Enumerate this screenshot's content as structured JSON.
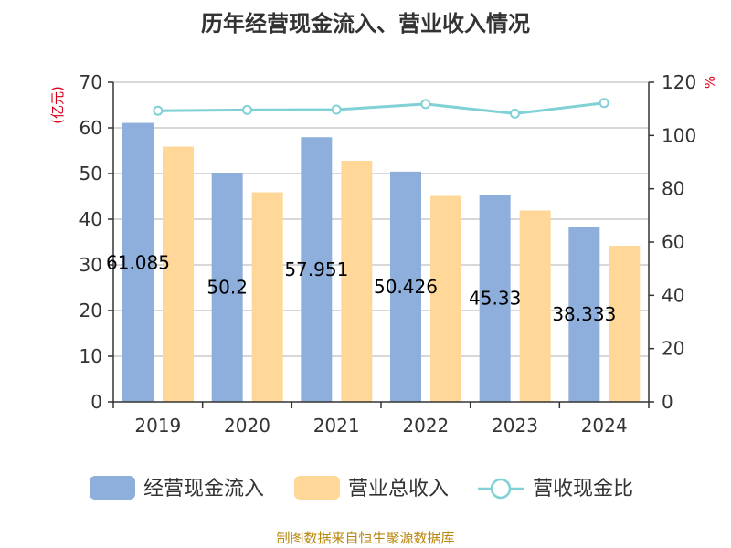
{
  "chart_data": {
    "type": "bar",
    "title": "历年经营现金流入、营业收入情况",
    "categories": [
      "2019",
      "2020",
      "2021",
      "2022",
      "2023",
      "2024"
    ],
    "series": [
      {
        "name": "经营现金流入",
        "type": "bar",
        "axis": "left",
        "values": [
          61.085,
          50.2,
          57.951,
          50.426,
          45.33,
          38.333
        ],
        "data_labels": [
          "61.085",
          "50.2",
          "57.951",
          "50.426",
          "45.33",
          "38.333"
        ]
      },
      {
        "name": "营业总收入",
        "type": "bar",
        "axis": "left",
        "values": [
          55.9,
          45.9,
          52.8,
          45.1,
          41.9,
          34.2
        ]
      },
      {
        "name": "营收现金比",
        "type": "line",
        "axis": "right",
        "values": [
          109.3,
          109.6,
          109.7,
          111.8,
          108.2,
          112.2
        ]
      }
    ],
    "left_axis": {
      "unit": "(亿元)",
      "min": 0,
      "max": 70,
      "ticks": [
        "0",
        "10",
        "20",
        "30",
        "40",
        "50",
        "60",
        "70"
      ]
    },
    "right_axis": {
      "unit": "%",
      "min": 0,
      "max": 120,
      "ticks": [
        "0",
        "20",
        "40",
        "60",
        "80",
        "100",
        "120"
      ]
    },
    "colors": {
      "bar1": "#8eaedb",
      "bar2": "#ffd899",
      "line": "#7fd1d6"
    },
    "grid": true,
    "legend_position": "bottom",
    "source": "制图数据来自恒生聚源数据库"
  }
}
